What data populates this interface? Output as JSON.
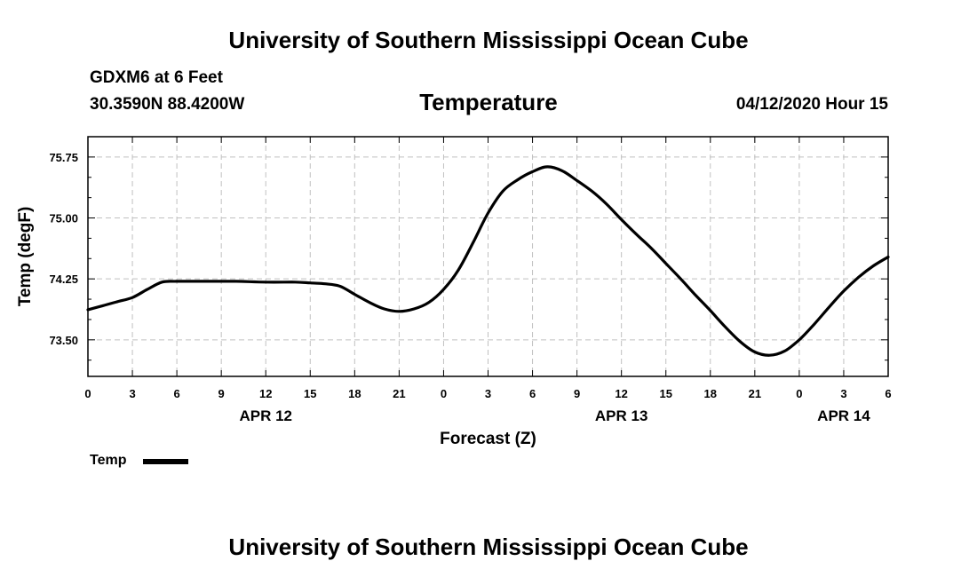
{
  "header": {
    "title": "University of Southern Mississippi Ocean Cube",
    "station": "GDXM6 at 6 Feet",
    "coordinates": "30.3590N 88.4200W",
    "variable": "Temperature",
    "datetime": "04/12/2020 Hour 15"
  },
  "footer": {
    "title": "University of Southern Mississippi Ocean Cube"
  },
  "legend": {
    "label": "Temp"
  },
  "colors": {
    "line": "#000000",
    "grid": "#c0c0c0",
    "axis": "#000000"
  },
  "chart_data": {
    "type": "line",
    "title": "Temperature",
    "xlabel": "Forecast (Z)",
    "ylabel": "Temp (degF)",
    "xlim": [
      0,
      54
    ],
    "ylim": [
      73.05,
      76.0
    ],
    "y_ticks": [
      73.5,
      74.25,
      75.0,
      75.75
    ],
    "y_tick_labels": [
      "73.50",
      "74.25",
      "75.00",
      "75.75"
    ],
    "y_minor_step": 0.25,
    "x_ticks": [
      0,
      3,
      6,
      9,
      12,
      15,
      18,
      21,
      24,
      27,
      30,
      33,
      36,
      39,
      42,
      45,
      48,
      51,
      54
    ],
    "x_tick_labels": [
      "0",
      "3",
      "6",
      "9",
      "12",
      "15",
      "18",
      "21",
      "0",
      "3",
      "6",
      "9",
      "12",
      "15",
      "18",
      "21",
      "0",
      "3",
      "6"
    ],
    "date_labels": [
      {
        "x": 12,
        "label": "APR 12"
      },
      {
        "x": 36,
        "label": "APR 13"
      },
      {
        "x": 51,
        "label": "APR 14"
      }
    ],
    "grid": true,
    "legend_position": "bottom-left",
    "series": [
      {
        "name": "Temp",
        "x": [
          0,
          1,
          2,
          3,
          4,
          5,
          6,
          8,
          10,
          12,
          14,
          15,
          16,
          17,
          18,
          19,
          20,
          21,
          22,
          23,
          24,
          25,
          26,
          27,
          28,
          29,
          30,
          31,
          32,
          33,
          34,
          35,
          36,
          37,
          38,
          39,
          40,
          41,
          42,
          43,
          44,
          45,
          46,
          47,
          48,
          49,
          50,
          51,
          52,
          53,
          54
        ],
        "values": [
          73.87,
          73.92,
          73.97,
          74.02,
          74.12,
          74.21,
          74.22,
          74.22,
          74.22,
          74.21,
          74.21,
          74.2,
          74.19,
          74.16,
          74.06,
          73.96,
          73.88,
          73.85,
          73.88,
          73.96,
          74.12,
          74.36,
          74.7,
          75.06,
          75.33,
          75.47,
          75.57,
          75.63,
          75.58,
          75.46,
          75.33,
          75.17,
          74.98,
          74.8,
          74.63,
          74.44,
          74.25,
          74.05,
          73.86,
          73.66,
          73.48,
          73.35,
          73.31,
          73.36,
          73.5,
          73.69,
          73.9,
          74.1,
          74.27,
          74.41,
          74.52
        ]
      }
    ]
  }
}
